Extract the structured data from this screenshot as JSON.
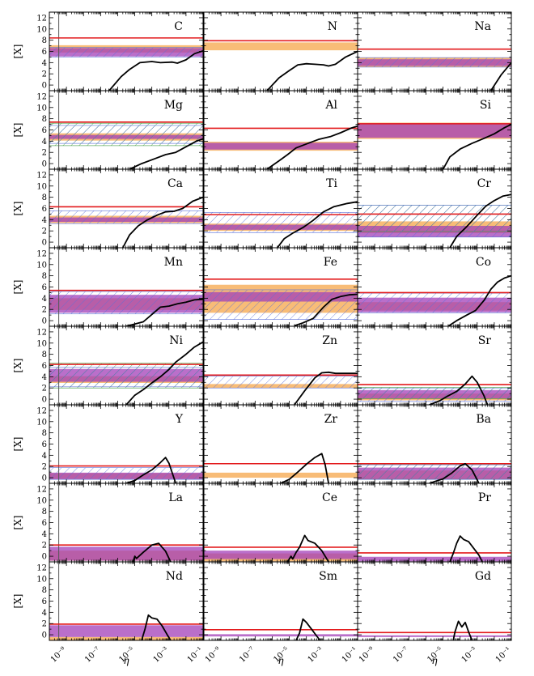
{
  "chart_data": {
    "type": "line",
    "layout": {
      "rows": 8,
      "cols": 3
    },
    "xlabel": "η",
    "ylabel": "[X]",
    "x_scale": "log10",
    "xlim_log10": [
      -10,
      -1
    ],
    "ylim": [
      -1,
      13
    ],
    "yticks": [
      0,
      2,
      4,
      6,
      8,
      10,
      12
    ],
    "xticks": [
      {
        "exp": -9,
        "label": "10⁻⁹"
      },
      {
        "exp": -7,
        "label": "10⁻⁷"
      },
      {
        "exp": -5,
        "label": "10⁻⁵"
      },
      {
        "exp": -3,
        "label": "10⁻³"
      },
      {
        "exp": -1,
        "label": "10⁻¹"
      }
    ],
    "vertical_reference_line_log10": -9.45,
    "colors": {
      "model_curve": "#000000",
      "red_limit": "#e31a1c",
      "orange_band": "#f5a54a",
      "purple_band": "#a33fb8",
      "blue_hatch": "#5a6fd8",
      "green_hatch": "#3a9a3a",
      "vertical_line": "#555555"
    },
    "panels": [
      {
        "element": "C",
        "red": 8.4,
        "orange": [
          5.8,
          7.1
        ],
        "purple": [
          5.1,
          6.6
        ],
        "blue": [
          5.0,
          6.7
        ],
        "green": null,
        "curve": [
          [
            -6.5,
            -1
          ],
          [
            -5.8,
            1.5
          ],
          [
            -5.3,
            2.8
          ],
          [
            -4.7,
            4.0
          ],
          [
            -4.0,
            4.2
          ],
          [
            -3.5,
            4.0
          ],
          [
            -2.8,
            4.1
          ],
          [
            -2.5,
            3.9
          ],
          [
            -2.0,
            4.5
          ],
          [
            -1.5,
            5.6
          ],
          [
            -1,
            6.1
          ]
        ]
      },
      {
        "element": "N",
        "red": 7.9,
        "orange": [
          6.2,
          7.6
        ],
        "purple": null,
        "blue": null,
        "green": null,
        "curve": [
          [
            -6.3,
            -1
          ],
          [
            -5.6,
            1.3
          ],
          [
            -5.0,
            2.6
          ],
          [
            -4.5,
            3.6
          ],
          [
            -4.0,
            3.8
          ],
          [
            -3.5,
            3.7
          ],
          [
            -3.0,
            3.6
          ],
          [
            -2.7,
            3.4
          ],
          [
            -2.3,
            3.7
          ],
          [
            -1.7,
            5.0
          ],
          [
            -1,
            6.0
          ]
        ]
      },
      {
        "element": "Na",
        "red": 6.4,
        "orange": [
          3.2,
          4.9
        ],
        "purple": [
          3.4,
          4.6
        ],
        "blue": [
          3.2,
          4.9
        ],
        "green": null,
        "curve": [
          [
            -2.2,
            -1
          ],
          [
            -1.6,
            1.8
          ],
          [
            -1,
            4.0
          ]
        ]
      },
      {
        "element": "Mg",
        "red": 7.4,
        "orange": [
          4.1,
          5.4
        ],
        "purple": [
          4.4,
          5.1
        ],
        "blue": [
          3.6,
          6.8
        ],
        "green": [
          3.2,
          7.2
        ],
        "curve": [
          [
            -5.3,
            -1
          ],
          [
            -4.6,
            0.0
          ],
          [
            -3.8,
            0.9
          ],
          [
            -3.2,
            1.6
          ],
          [
            -2.6,
            2.0
          ],
          [
            -2.0,
            3.0
          ],
          [
            -1.4,
            4.0
          ],
          [
            -1,
            4.4
          ]
        ]
      },
      {
        "element": "Al",
        "red": 6.3,
        "orange": [
          2.3,
          3.9
        ],
        "purple": [
          2.5,
          3.7
        ],
        "blue": null,
        "green": null,
        "curve": [
          [
            -6.3,
            -1
          ],
          [
            -5.6,
            0.5
          ],
          [
            -5.1,
            1.6
          ],
          [
            -4.6,
            2.8
          ],
          [
            -4.0,
            3.5
          ],
          [
            -3.3,
            4.3
          ],
          [
            -2.6,
            4.8
          ],
          [
            -2.0,
            5.5
          ],
          [
            -1.4,
            6.3
          ],
          [
            -1,
            6.7
          ]
        ]
      },
      {
        "element": "Si",
        "red": 7.1,
        "orange": [
          4.4,
          7.3
        ],
        "purple": [
          4.6,
          7.2
        ],
        "blue": null,
        "green": null,
        "curve": [
          [
            -5.0,
            -1
          ],
          [
            -4.6,
            1.2
          ],
          [
            -4.0,
            2.6
          ],
          [
            -3.3,
            3.6
          ],
          [
            -2.6,
            4.5
          ],
          [
            -2.0,
            5.3
          ],
          [
            -1.4,
            6.4
          ],
          [
            -1,
            7.0
          ]
        ]
      },
      {
        "element": "Ca",
        "red": 6.3,
        "orange": [
          3.4,
          4.7
        ],
        "purple": [
          3.6,
          4.4
        ],
        "blue": [
          3.3,
          5.6
        ],
        "green": null,
        "curve": [
          [
            -5.7,
            -1
          ],
          [
            -5.3,
            1.3
          ],
          [
            -4.8,
            2.9
          ],
          [
            -4.3,
            3.9
          ],
          [
            -3.7,
            4.8
          ],
          [
            -3.2,
            5.4
          ],
          [
            -2.7,
            5.5
          ],
          [
            -2.2,
            6.0
          ],
          [
            -1.6,
            7.3
          ],
          [
            -1,
            8.0
          ]
        ]
      },
      {
        "element": "Ti",
        "red": 4.9,
        "orange": [
          2.0,
          3.3
        ],
        "purple": [
          2.2,
          3.1
        ],
        "blue": [
          1.7,
          5.3
        ],
        "green": null,
        "curve": [
          [
            -5.7,
            -1
          ],
          [
            -5.3,
            0.6
          ],
          [
            -4.8,
            1.6
          ],
          [
            -4.2,
            2.6
          ],
          [
            -3.6,
            3.9
          ],
          [
            -3.0,
            5.4
          ],
          [
            -2.4,
            6.3
          ],
          [
            -1.6,
            6.9
          ],
          [
            -1,
            7.2
          ]
        ]
      },
      {
        "element": "Cr",
        "red": 5.0,
        "orange": [
          1.6,
          3.7
        ],
        "purple": [
          0.9,
          2.9
        ],
        "blue": [
          0.9,
          6.6
        ],
        "green": [
          1.9,
          6.6
        ],
        "curve": [
          [
            -4.6,
            -1
          ],
          [
            -4.2,
            1.0
          ],
          [
            -3.6,
            2.8
          ],
          [
            -3.0,
            4.8
          ],
          [
            -2.5,
            6.4
          ],
          [
            -2.0,
            7.4
          ],
          [
            -1.5,
            8.2
          ],
          [
            -1,
            8.5
          ]
        ]
      },
      {
        "element": "Mn",
        "red": 5.4,
        "orange": [
          1.9,
          4.0
        ],
        "purple": [
          1.4,
          4.6
        ],
        "blue": [
          1.2,
          5.2
        ],
        "green": null,
        "curve": [
          [
            -5.5,
            -1
          ],
          [
            -5.0,
            -0.6
          ],
          [
            -4.5,
            -0.2
          ],
          [
            -4.0,
            1.1
          ],
          [
            -3.5,
            2.4
          ],
          [
            -3.0,
            2.6
          ],
          [
            -2.5,
            3.0
          ],
          [
            -2.0,
            3.3
          ],
          [
            -1.5,
            3.7
          ],
          [
            -1,
            3.8
          ]
        ]
      },
      {
        "element": "Fe",
        "red": 7.4,
        "orange": [
          1.4,
          6.4
        ],
        "purple": [
          3.4,
          5.1
        ],
        "blue": [
          0.2,
          5.5
        ],
        "green": null,
        "curve": [
          [
            -4.7,
            -0.9
          ],
          [
            -4.2,
            -0.4
          ],
          [
            -3.6,
            0.4
          ],
          [
            -3.0,
            2.4
          ],
          [
            -2.5,
            3.8
          ],
          [
            -2.0,
            4.3
          ],
          [
            -1.5,
            4.6
          ],
          [
            -1,
            4.7
          ]
        ]
      },
      {
        "element": "Co",
        "red": 5.0,
        "orange": [
          1.8,
          3.3
        ],
        "purple": [
          1.5,
          4.1
        ],
        "blue": [
          1.4,
          4.9
        ],
        "green": null,
        "curve": [
          [
            -4.7,
            -1
          ],
          [
            -4.2,
            0.0
          ],
          [
            -3.6,
            1.0
          ],
          [
            -3.1,
            1.8
          ],
          [
            -2.6,
            3.6
          ],
          [
            -2.2,
            5.6
          ],
          [
            -1.8,
            6.9
          ],
          [
            -1.4,
            7.6
          ],
          [
            -1,
            8.0
          ]
        ]
      },
      {
        "element": "Ni",
        "red": 6.2,
        "orange": [
          2.9,
          4.1
        ],
        "purple": [
          3.1,
          5.4
        ],
        "blue": [
          2.2,
          5.7
        ],
        "green": [
          2.0,
          6.4
        ],
        "curve": [
          [
            -5.5,
            -1
          ],
          [
            -5.0,
            0.7
          ],
          [
            -4.5,
            1.7
          ],
          [
            -4.0,
            2.9
          ],
          [
            -3.5,
            4.0
          ],
          [
            -3.0,
            5.3
          ],
          [
            -2.6,
            6.6
          ],
          [
            -2.0,
            8.0
          ],
          [
            -1.5,
            9.3
          ],
          [
            -1,
            10.2
          ]
        ]
      },
      {
        "element": "Zn",
        "red": 4.3,
        "orange": [
          2.0,
          2.7
        ],
        "purple": null,
        "blue": [
          2.0,
          4.1
        ],
        "green": null,
        "curve": [
          [
            -4.7,
            -1
          ],
          [
            -4.1,
            1.5
          ],
          [
            -3.5,
            3.8
          ],
          [
            -3.1,
            4.7
          ],
          [
            -2.7,
            4.8
          ],
          [
            -2.3,
            4.6
          ],
          [
            -1.6,
            4.6
          ],
          [
            -1,
            4.6
          ]
        ]
      },
      {
        "element": "Sr",
        "red": 2.6,
        "orange": [
          -0.2,
          1.0
        ],
        "purple": [
          0.1,
          1.6
        ],
        "blue": [
          -0.4,
          1.9
        ],
        "green": [
          0.1,
          2.1
        ],
        "curve": [
          [
            -5.8,
            -1
          ],
          [
            -5.2,
            -0.3
          ],
          [
            -4.7,
            0.6
          ],
          [
            -4.2,
            1.4
          ],
          [
            -3.7,
            2.7
          ],
          [
            -3.3,
            4.1
          ],
          [
            -3.0,
            3.0
          ],
          [
            -2.6,
            0.6
          ],
          [
            -2.4,
            -1
          ]
        ]
      },
      {
        "element": "Y",
        "red": 2.1,
        "orange": [
          -0.2,
          0.8
        ],
        "purple": [
          -0.3,
          0.9
        ],
        "blue": [
          -0.3,
          1.8
        ],
        "green": null,
        "curve": [
          [
            -5.5,
            -1
          ],
          [
            -5.0,
            -0.5
          ],
          [
            -4.5,
            0.5
          ],
          [
            -4.0,
            1.4
          ],
          [
            -3.5,
            2.7
          ],
          [
            -3.2,
            3.6
          ],
          [
            -3.0,
            2.6
          ],
          [
            -2.8,
            0.8
          ],
          [
            -2.6,
            -1
          ]
        ]
      },
      {
        "element": "Zr",
        "red": 2.5,
        "orange": [
          0.0,
          0.9
        ],
        "purple": null,
        "blue": null,
        "green": null,
        "curve": [
          [
            -5.5,
            -1
          ],
          [
            -5.0,
            -0.3
          ],
          [
            -4.5,
            1.0
          ],
          [
            -4.0,
            2.4
          ],
          [
            -3.5,
            3.6
          ],
          [
            -3.1,
            4.3
          ],
          [
            -2.9,
            2.3
          ],
          [
            -2.7,
            -1
          ]
        ]
      },
      {
        "element": "Ba",
        "red": 2.5,
        "orange": [
          -0.3,
          1.3
        ],
        "purple": [
          -0.3,
          1.8
        ],
        "blue": [
          -0.3,
          2.3
        ],
        "green": [
          -0.3,
          2.4
        ],
        "curve": [
          [
            -5.8,
            -1
          ],
          [
            -5.4,
            -0.6
          ],
          [
            -5.0,
            -0.2
          ],
          [
            -4.5,
            0.8
          ],
          [
            -4.0,
            2.1
          ],
          [
            -3.7,
            2.5
          ],
          [
            -3.3,
            1.4
          ],
          [
            -3.0,
            -0.4
          ],
          [
            -2.9,
            -1
          ]
        ]
      },
      {
        "element": "La",
        "red": 2.0,
        "orange": [
          -0.8,
          1.0
        ],
        "purple": [
          -0.8,
          1.7
        ],
        "blue": null,
        "green": null,
        "curve": [
          [
            -5.1,
            -1
          ],
          [
            -5.0,
            0.0
          ],
          [
            -4.9,
            -0.4
          ],
          [
            -4.5,
            0.7
          ],
          [
            -4.0,
            2.0
          ],
          [
            -3.6,
            2.3
          ],
          [
            -3.2,
            0.9
          ],
          [
            -2.9,
            -1
          ]
        ]
      },
      {
        "element": "Ce",
        "red": 1.6,
        "orange": [
          -0.9,
          0.5
        ],
        "purple": [
          -0.5,
          1.0
        ],
        "blue": null,
        "green": null,
        "curve": [
          [
            -5.1,
            -1
          ],
          [
            -4.9,
            0.0
          ],
          [
            -4.8,
            -0.5
          ],
          [
            -4.6,
            0.7
          ],
          [
            -4.4,
            1.6
          ],
          [
            -4.1,
            3.7
          ],
          [
            -3.9,
            2.8
          ],
          [
            -3.5,
            2.3
          ],
          [
            -3.1,
            1.0
          ],
          [
            -2.7,
            -1
          ]
        ]
      },
      {
        "element": "Pr",
        "red": 0.6,
        "orange": null,
        "purple": [
          -0.9,
          -0.1
        ],
        "blue": null,
        "green": null,
        "curve": [
          [
            -4.6,
            -1
          ],
          [
            -4.4,
            0.5
          ],
          [
            -4.2,
            2.3
          ],
          [
            -4.0,
            3.6
          ],
          [
            -3.8,
            3.0
          ],
          [
            -3.5,
            2.6
          ],
          [
            -3.2,
            1.4
          ],
          [
            -2.9,
            0.2
          ],
          [
            -2.7,
            -1
          ]
        ]
      },
      {
        "element": "Nd",
        "red": 1.9,
        "orange": [
          -1.0,
          -0.4
        ],
        "purple": [
          -0.4,
          1.7
        ],
        "blue": null,
        "green": null,
        "curve": [
          [
            -4.6,
            -1
          ],
          [
            -4.4,
            1.0
          ],
          [
            -4.2,
            3.5
          ],
          [
            -4.0,
            3.0
          ],
          [
            -3.7,
            2.8
          ],
          [
            -3.4,
            1.6
          ],
          [
            -3.1,
            0.0
          ],
          [
            -2.9,
            -1
          ]
        ]
      },
      {
        "element": "Sm",
        "red": 0.9,
        "orange": null,
        "purple": [
          -0.3,
          0.1
        ],
        "blue": null,
        "green": null,
        "curve": [
          [
            -4.6,
            -1
          ],
          [
            -4.4,
            0.3
          ],
          [
            -4.2,
            2.8
          ],
          [
            -4.0,
            2.2
          ],
          [
            -3.7,
            1.0
          ],
          [
            -3.4,
            -0.2
          ],
          [
            -3.2,
            -1
          ]
        ]
      },
      {
        "element": "Gd",
        "red": 0.4,
        "orange": null,
        "purple": [
          -0.4,
          -0.1
        ],
        "blue": null,
        "green": null,
        "curve": [
          [
            -4.4,
            -1
          ],
          [
            -4.3,
            0.5
          ],
          [
            -4.1,
            2.4
          ],
          [
            -3.9,
            1.4
          ],
          [
            -3.7,
            2.2
          ],
          [
            -3.5,
            0.5
          ],
          [
            -3.3,
            -1
          ]
        ]
      }
    ]
  }
}
